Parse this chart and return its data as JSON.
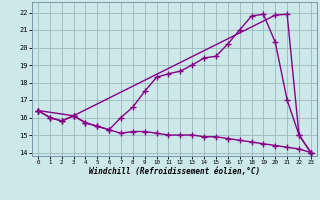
{
  "xlabel": "Windchill (Refroidissement éolien,°C)",
  "bg_color": "#cce8e8",
  "line_color": "#880088",
  "grid_color": "#99bbbb",
  "xlim": [
    -0.5,
    23.5
  ],
  "ylim": [
    13.8,
    22.6
  ],
  "yticks": [
    14,
    15,
    16,
    17,
    18,
    19,
    20,
    21,
    22
  ],
  "xticks": [
    0,
    1,
    2,
    3,
    4,
    5,
    6,
    7,
    8,
    9,
    10,
    11,
    12,
    13,
    14,
    15,
    16,
    17,
    18,
    19,
    20,
    21,
    22,
    23
  ],
  "line1_x": [
    0,
    1,
    2,
    3,
    4,
    5,
    6,
    7,
    8,
    9,
    10,
    11,
    12,
    13,
    14,
    15,
    16,
    17,
    18,
    19,
    20,
    21,
    22,
    23
  ],
  "line1_y": [
    16.4,
    16.0,
    15.8,
    16.1,
    15.7,
    15.5,
    15.3,
    15.1,
    15.2,
    15.2,
    15.1,
    15.0,
    15.0,
    15.0,
    14.9,
    14.9,
    14.8,
    14.7,
    14.6,
    14.5,
    14.4,
    14.3,
    14.2,
    14.0
  ],
  "line2_x": [
    0,
    1,
    2,
    3,
    4,
    5,
    6,
    7,
    8,
    9,
    10,
    11,
    12,
    13,
    14,
    15,
    16,
    17,
    18,
    19,
    20,
    21,
    22,
    23
  ],
  "line2_y": [
    16.4,
    16.0,
    15.8,
    16.1,
    15.7,
    15.5,
    15.3,
    16.0,
    16.6,
    17.5,
    18.3,
    18.5,
    18.65,
    19.0,
    19.4,
    19.5,
    20.2,
    21.0,
    21.8,
    21.9,
    20.3,
    17.0,
    15.0,
    14.0
  ],
  "line3_x": [
    0,
    3,
    20,
    21,
    22,
    23
  ],
  "line3_y": [
    16.4,
    16.1,
    21.85,
    21.9,
    15.0,
    14.0
  ],
  "marker": "+",
  "markersize": 4,
  "linewidth": 1.0
}
